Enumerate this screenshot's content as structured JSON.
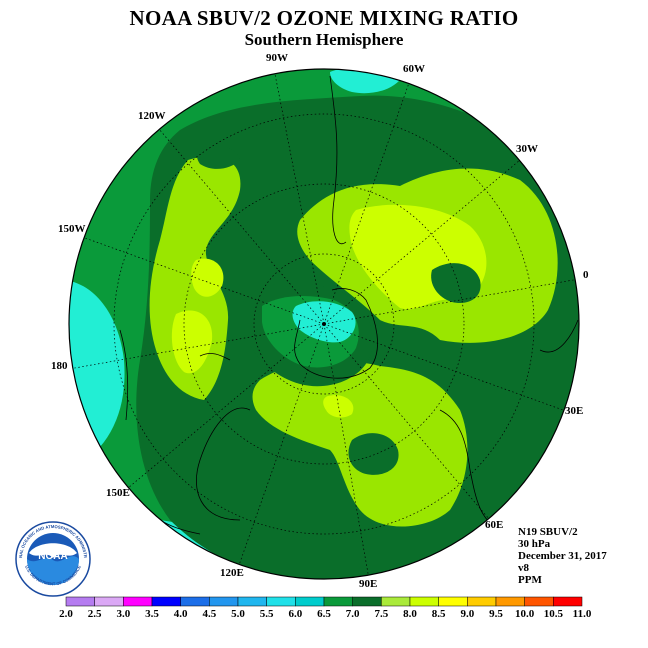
{
  "header": {
    "title": "NOAA SBUV/2 OZONE MIXING RATIO",
    "subtitle": "Southern Hemisphere"
  },
  "longitude_labels": [
    "90W",
    "60W",
    "30W",
    "0",
    "30E",
    "60E",
    "90E",
    "120E",
    "150E",
    "180",
    "150W",
    "120W"
  ],
  "info": {
    "satellite": "N19 SBUV/2",
    "level": "30 hPa",
    "date": "December 31, 2017",
    "version": "v8",
    "units": "PPM"
  },
  "colorbar": {
    "ticks": [
      "2.0",
      "2.5",
      "3.0",
      "3.5",
      "4.0",
      "4.5",
      "5.0",
      "5.5",
      "6.0",
      "6.5",
      "7.0",
      "7.5",
      "8.0",
      "8.5",
      "9.0",
      "9.5",
      "10.0",
      "10.5",
      "11.0"
    ],
    "colors": [
      "#b57cf0",
      "#dba8f5",
      "#ff00ff",
      "#0000ff",
      "#1c6ee8",
      "#2296ee",
      "#20b6ee",
      "#20e0e8",
      "#00cccc",
      "#0a9a3a",
      "#0a6e2a",
      "#aaea3a",
      "#ccff00",
      "#ffff00",
      "#ffcc00",
      "#ff9900",
      "#ff5500",
      "#ff0000",
      "#8b5a3a"
    ]
  },
  "map_colors": {
    "c55": "#22eed4",
    "c60": "#0a9a3a",
    "c65": "#0a6e2a",
    "c70": "#9ae600",
    "c75": "#ccff00"
  },
  "logo": {
    "text": "NOAA",
    "ring_text": "NATIONAL OCEANIC AND ATMOSPHERIC ADMINISTRATION",
    "ring_text_bottom": "U.S. DEPARTMENT OF COMMERCE"
  }
}
